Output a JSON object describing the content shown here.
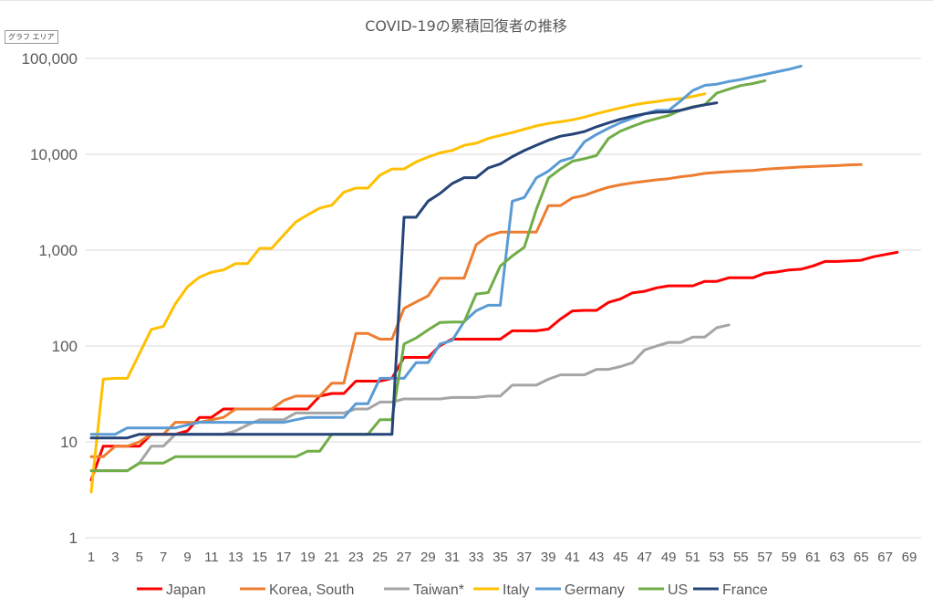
{
  "ui": {
    "tooltip": "グラフ エリア"
  },
  "chart_data": {
    "type": "line",
    "title": "COVID-19の累積回復者の推移",
    "xlabel": "",
    "ylabel": "",
    "y_scale": "log",
    "ylim": [
      1,
      100000
    ],
    "yticks": [
      1,
      10,
      100,
      1000,
      10000,
      100000
    ],
    "ytick_labels": [
      "1",
      "10",
      "100",
      "1,000",
      "10,000",
      "100,000"
    ],
    "xlim": [
      1,
      69
    ],
    "xtick_labels": [
      "1",
      "3",
      "5",
      "7",
      "9",
      "11",
      "13",
      "15",
      "17",
      "19",
      "21",
      "23",
      "25",
      "27",
      "29",
      "31",
      "33",
      "35",
      "37",
      "39",
      "41",
      "43",
      "45",
      "47",
      "49",
      "51",
      "53",
      "55",
      "57",
      "59",
      "61",
      "63",
      "65",
      "67",
      "69"
    ],
    "grid": "horizontal",
    "legend_position": "bottom",
    "series": [
      {
        "name": "Japan",
        "color": "#ff0000",
        "values": [
          4,
          9,
          9,
          9,
          9,
          12,
          12,
          12,
          13,
          18,
          18,
          22,
          22,
          22,
          22,
          22,
          22,
          22,
          22,
          30,
          32,
          32,
          43,
          43,
          43,
          46,
          76,
          76,
          76,
          101,
          118,
          118,
          118,
          118,
          118,
          144,
          144,
          144,
          150,
          191,
          232,
          235,
          235,
          285,
          310,
          359,
          372,
          404,
          424,
          424,
          424,
          472,
          472,
          514,
          514,
          514,
          575,
          592,
          622,
          632,
          685,
          762,
          762,
          774,
          784,
          852,
          901,
          948
        ]
      },
      {
        "name": "Korea, South",
        "color": "#ed7d31",
        "values": [
          7,
          7,
          9,
          9,
          10,
          12,
          12,
          16,
          16,
          16,
          17,
          18,
          22,
          22,
          22,
          22,
          27,
          30,
          30,
          30,
          41,
          41,
          135,
          135,
          118,
          118,
          247,
          288,
          333,
          510,
          510,
          510,
          1137,
          1407,
          1540,
          1540,
          1540,
          1540,
          2909,
          2909,
          3507,
          3730,
          4144,
          4528,
          4811,
          5033,
          5228,
          5408,
          5567,
          5828,
          6021,
          6325,
          6463,
          6598,
          6694,
          6776,
          6973,
          7117,
          7243,
          7368,
          7447,
          7534,
          7616,
          7757,
          7829
        ]
      },
      {
        "name": "Taiwan*",
        "color": "#a5a5a5",
        "values": [
          5,
          5,
          5,
          5,
          6,
          9,
          9,
          12,
          12,
          12,
          12,
          12,
          13,
          15,
          17,
          17,
          17,
          20,
          20,
          20,
          20,
          20,
          22,
          22,
          26,
          26,
          28,
          28,
          28,
          28,
          29,
          29,
          29,
          30,
          30,
          39,
          39,
          39,
          45,
          50,
          50,
          50,
          57,
          57,
          61,
          67,
          91,
          100,
          109,
          109,
          124,
          124,
          155,
          166
        ]
      },
      {
        "name": "Italy",
        "color": "#ffc000",
        "values": [
          3,
          45,
          46,
          46,
          83,
          149,
          160,
          276,
          414,
          523,
          589,
          622,
          724,
          724,
          1045,
          1045,
          1439,
          1966,
          2335,
          2749,
          2941,
          4025,
          4440,
          4440,
          6072,
          7024,
          7024,
          8326,
          9362,
          10361,
          10950,
          12384,
          13030,
          14620,
          15729,
          16847,
          18278,
          19758,
          20996,
          21815,
          22837,
          24392,
          26491,
          28470,
          30455,
          32534,
          34211,
          35435,
          37130,
          38092,
          40164,
          42727
        ]
      },
      {
        "name": "Germany",
        "color": "#5b9bd5",
        "values": [
          12,
          12,
          12,
          14,
          14,
          14,
          14,
          14,
          15,
          16,
          16,
          16,
          16,
          16,
          16,
          16,
          16,
          17,
          18,
          18,
          18,
          18,
          25,
          25,
          46,
          46,
          46,
          67,
          67,
          105,
          114,
          180,
          233,
          266,
          266,
          3243,
          3547,
          5673,
          6658,
          8481,
          9211,
          13500,
          16100,
          18700,
          21400,
          23800,
          26400,
          28700,
          28700,
          36081,
          46300,
          52407,
          53913,
          57400,
          60300,
          64300,
          68200,
          72600,
          77000,
          83114
        ]
      },
      {
        "name": "US",
        "color": "#70ad47",
        "values": [
          5,
          5,
          5,
          5,
          6,
          6,
          6,
          7,
          7,
          7,
          7,
          7,
          7,
          7,
          7,
          7,
          7,
          7,
          8,
          8,
          12,
          12,
          12,
          12,
          17,
          17,
          105,
          121,
          147,
          176,
          178,
          178,
          348,
          361,
          681,
          869,
          1072,
          2665,
          5644,
          7024,
          8474,
          9001,
          9707,
          14652,
          17448,
          19581,
          21763,
          23559,
          25410,
          28790,
          31270,
          32988,
          43482,
          47763,
          52096,
          54703,
          58545
        ]
      },
      {
        "name": "France",
        "color": "#264478",
        "values": [
          11,
          11,
          11,
          11,
          12,
          12,
          12,
          12,
          12,
          12,
          12,
          12,
          12,
          12,
          12,
          12,
          12,
          12,
          12,
          12,
          12,
          12,
          12,
          12,
          12,
          12,
          2200,
          2200,
          3250,
          3900,
          4948,
          5700,
          5700,
          7202,
          7927,
          9444,
          10934,
          12428,
          14008,
          15438,
          16183,
          17250,
          19337,
          21254,
          23206,
          24932,
          26391,
          27469,
          27718,
          28805,
          30955,
          32812,
          34420
        ]
      }
    ]
  }
}
